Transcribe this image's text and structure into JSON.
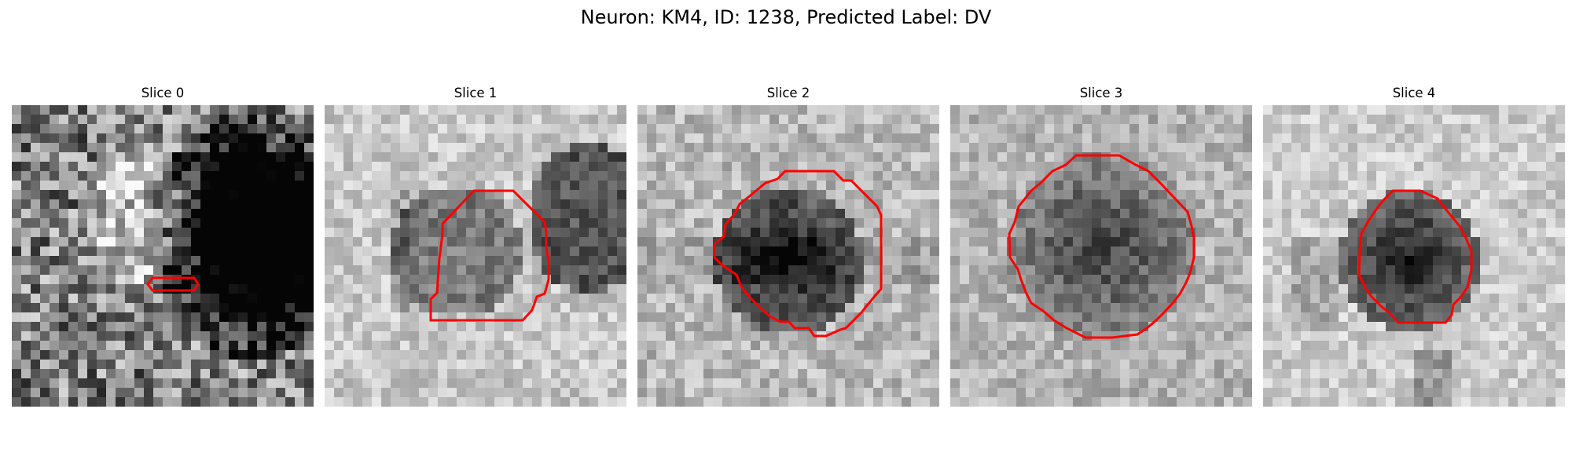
{
  "figure": {
    "title": "Neuron: KM4, ID: 1238, Predicted Label: DV"
  },
  "panels": [
    {
      "title": "Slice 0",
      "seed": 11
    },
    {
      "title": "Slice 1",
      "seed": 23
    },
    {
      "title": "Slice 2",
      "seed": 37
    },
    {
      "title": "Slice 3",
      "seed": 53
    },
    {
      "title": "Slice 4",
      "seed": 71
    }
  ],
  "colors": {
    "contour": "#ff0000",
    "background": "#ffffff",
    "text": "#000000"
  },
  "image_grid": {
    "pixels_per_side": 32,
    "colormap": "grayscale"
  }
}
